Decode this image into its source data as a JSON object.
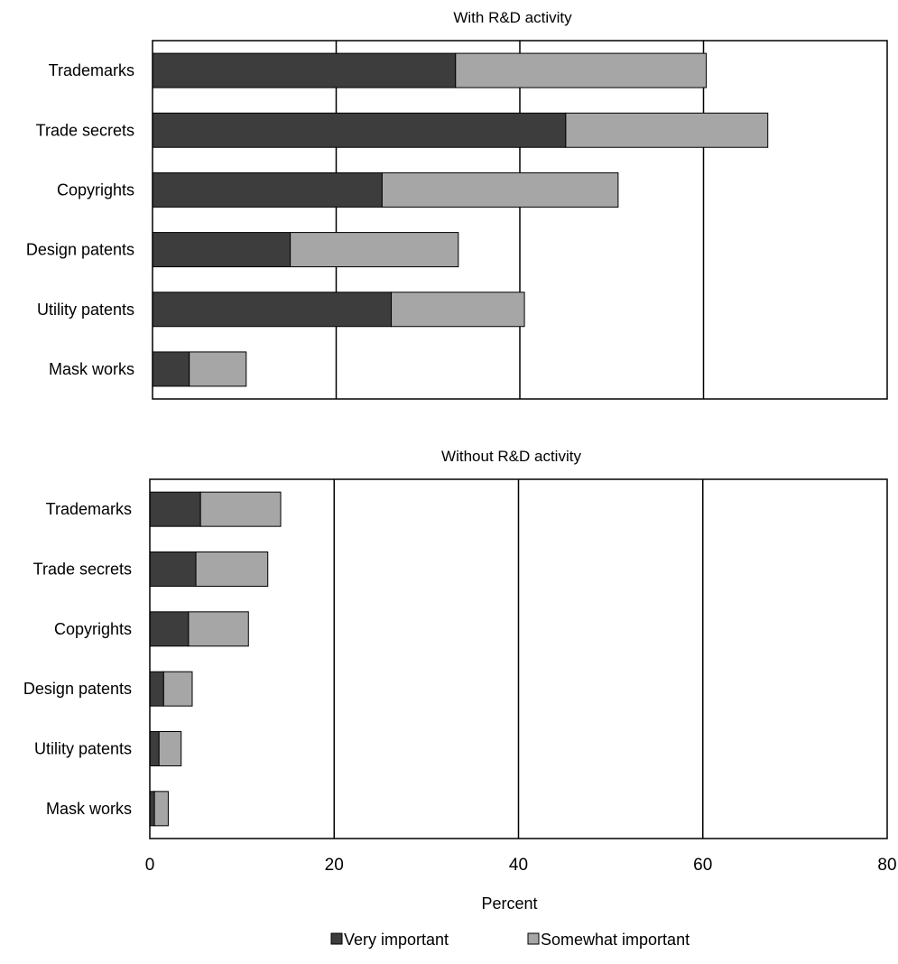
{
  "chart_data": [
    {
      "type": "bar",
      "orientation": "horizontal",
      "stacked": true,
      "title": "With R&D activity",
      "categories": [
        "Trademarks",
        "Trade secrets",
        "Copyrights",
        "Design patents",
        "Utility patents",
        "Mask works"
      ],
      "series": [
        {
          "name": "Very important",
          "values": [
            33,
            45,
            25,
            15,
            26,
            4
          ]
        },
        {
          "name": "Somewhat important",
          "values": [
            27.3,
            22,
            25.7,
            18.3,
            14.5,
            6.2
          ]
        }
      ],
      "xlim": [
        0,
        80
      ],
      "grid": "vertical",
      "xticks_shown": false
    },
    {
      "type": "bar",
      "orientation": "horizontal",
      "stacked": true,
      "title": "Without R&D activity",
      "categories": [
        "Trademarks",
        "Trade secrets",
        "Copyrights",
        "Design patents",
        "Utility patents",
        "Mask works"
      ],
      "series": [
        {
          "name": "Very important",
          "values": [
            5.5,
            5,
            4.2,
            1.5,
            1,
            0.5
          ]
        },
        {
          "name": "Somewhat important",
          "values": [
            8.7,
            7.8,
            6.5,
            3.1,
            2.4,
            1.5
          ]
        }
      ],
      "xlim": [
        0,
        80
      ],
      "xticks": [
        0,
        20,
        40,
        60,
        80
      ],
      "xlabel": "Percent",
      "grid": "vertical"
    }
  ],
  "legend": {
    "placement": "bottom-center",
    "items": [
      {
        "label": "Very important",
        "color": "#3d3d3d"
      },
      {
        "label": "Somewhat important",
        "color": "#a6a6a6"
      }
    ]
  },
  "colors": {
    "very": "#3d3d3d",
    "somewhat": "#a6a6a6",
    "axis": "#000000"
  }
}
